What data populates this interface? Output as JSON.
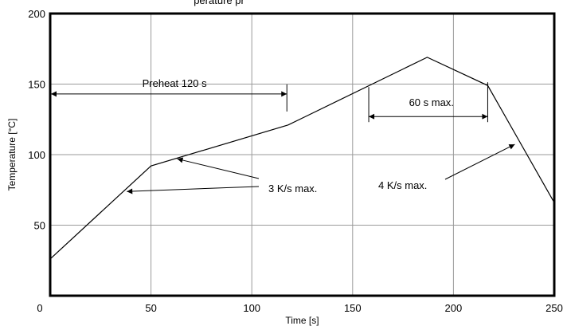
{
  "chart_data": {
    "type": "line",
    "title_partial": "perature pr",
    "xlabel": "Time [s]",
    "ylabel": "Temperature [°C]",
    "xlim": [
      0,
      250
    ],
    "ylim": [
      0,
      200
    ],
    "x_ticks": [
      0,
      50,
      100,
      150,
      200,
      250
    ],
    "y_ticks": [
      50,
      100,
      150,
      200
    ],
    "grid": true,
    "series": [
      {
        "x": [
          0,
          50,
          118,
          187,
          217,
          250
        ],
        "y": [
          26,
          92,
          121,
          169,
          149,
          66
        ]
      }
    ],
    "annotations": {
      "preheat": {
        "label": "Preheat 120 s",
        "x_start": 0,
        "x_end": 117,
        "y": 143
      },
      "hold": {
        "label": "60 s max.",
        "x_start": 158,
        "x_end": 217,
        "y": 127
      },
      "ramp_up": {
        "label": "3 K/s max.",
        "targets": [
          [
            38,
            75
          ],
          [
            63,
            97
          ]
        ]
      },
      "ramp_down": {
        "label": "4 K/s max.",
        "target": [
          232,
          109
        ]
      }
    }
  }
}
